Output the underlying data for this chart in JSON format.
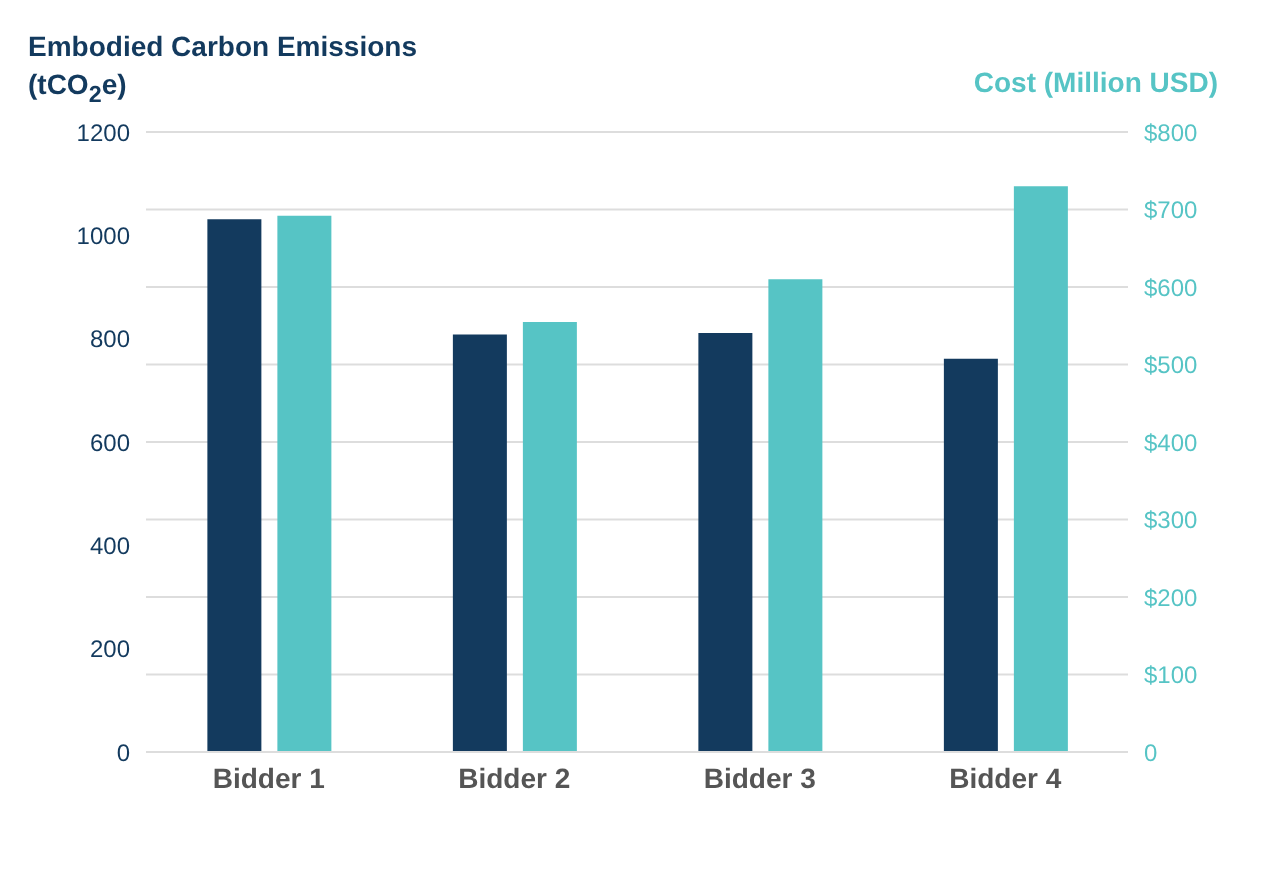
{
  "chart_data": {
    "type": "bar",
    "ylabel": "Embodied Carbon Emissions (tCO$_{2}$e)",
    "y2label": "Cost (Million USD)",
    "categories": [
      "Bidder 1",
      "Bidder 2",
      "Bidder 3",
      "Bidder 4"
    ],
    "series": [
      {
        "color": "#133a5e",
        "values": [
          1031,
          808,
          811,
          761
        ]
      },
      {
        "color": "#56c4c5",
        "axis": "y2",
        "values": [
          692,
          555,
          610,
          730
        ]
      }
    ],
    "ylim": [
      0,
      1200
    ],
    "yticks": [
      0,
      200,
      400,
      600,
      800,
      1000,
      1200
    ],
    "y2lim": [
      0,
      800
    ],
    "y2ticks": [
      0,
      {
        "value": 100,
        "label": "$100"
      },
      {
        "value": 200,
        "label": "$200"
      },
      {
        "value": 300,
        "label": "$300"
      },
      {
        "value": 400,
        "label": "$400"
      },
      {
        "value": 500,
        "label": "$500"
      },
      {
        "value": 600,
        "label": "$600"
      },
      {
        "value": 700,
        "label": "$700"
      },
      {
        "value": 800,
        "label": "$800"
      }
    ],
    "grid": true
  }
}
